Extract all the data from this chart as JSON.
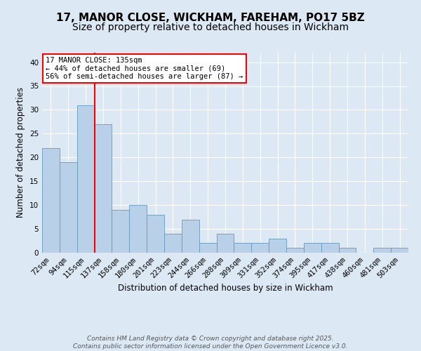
{
  "title1": "17, MANOR CLOSE, WICKHAM, FAREHAM, PO17 5BZ",
  "title2": "Size of property relative to detached houses in Wickham",
  "xlabel": "Distribution of detached houses by size in Wickham",
  "ylabel": "Number of detached properties",
  "categories": [
    "72sqm",
    "94sqm",
    "115sqm",
    "137sqm",
    "158sqm",
    "180sqm",
    "201sqm",
    "223sqm",
    "244sqm",
    "266sqm",
    "288sqm",
    "309sqm",
    "331sqm",
    "352sqm",
    "374sqm",
    "395sqm",
    "417sqm",
    "438sqm",
    "460sqm",
    "481sqm",
    "503sqm"
  ],
  "values": [
    22,
    19,
    31,
    27,
    9,
    10,
    8,
    4,
    7,
    2,
    4,
    2,
    2,
    3,
    1,
    2,
    2,
    1,
    0,
    1,
    1
  ],
  "bar_color": "#b8d0e8",
  "bar_edge_color": "#6699bb",
  "vline_color": "red",
  "annotation_title": "17 MANOR CLOSE: 135sqm",
  "annotation_line1": "← 44% of detached houses are smaller (69)",
  "annotation_line2": "56% of semi-detached houses are larger (87) →",
  "annotation_box_color": "white",
  "annotation_box_edge": "red",
  "ylim": [
    0,
    42
  ],
  "yticks": [
    0,
    5,
    10,
    15,
    20,
    25,
    30,
    35,
    40
  ],
  "footer1": "Contains HM Land Registry data © Crown copyright and database right 2025.",
  "footer2": "Contains public sector information licensed under the Open Government Licence v3.0.",
  "background_color": "#dce9f5",
  "plot_bg_color": "#dce9f5",
  "grid_color": "white",
  "title_fontsize": 11,
  "subtitle_fontsize": 10,
  "axis_label_fontsize": 8.5,
  "tick_fontsize": 7.5,
  "footer_fontsize": 6.5
}
